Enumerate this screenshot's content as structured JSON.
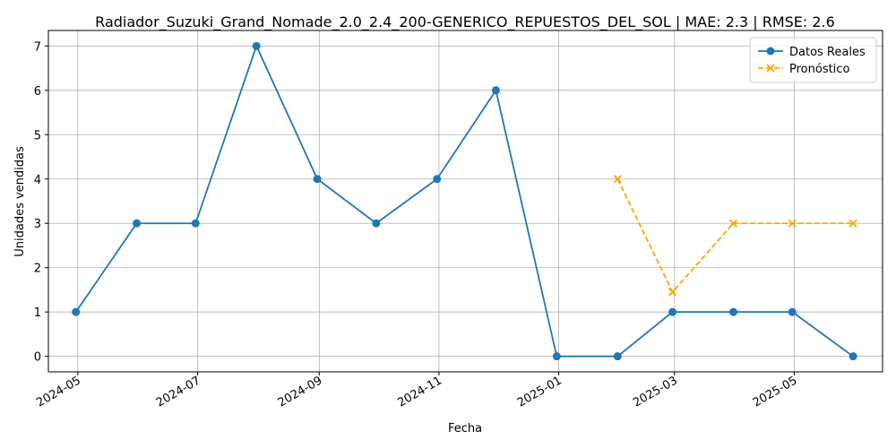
{
  "chart_data": {
    "type": "line",
    "title": "Radiador_Suzuki_Grand_Nomade_2.0_2.4_200-GENERICO_REPUESTOS_DEL_SOL | MAE: 2.3 | RMSE: 2.6",
    "xlabel": "Fecha",
    "ylabel": "Unidades vendidas",
    "x_tick_labels": [
      "2024-05",
      "2024-07",
      "2024-09",
      "2024-11",
      "2025-01",
      "2025-03",
      "2025-05"
    ],
    "y_tick_labels": [
      "0",
      "1",
      "2",
      "3",
      "4",
      "5",
      "6",
      "7"
    ],
    "xlim": [
      "2024-04-16",
      "2025-06-15"
    ],
    "ylim": [
      -0.35,
      7.35
    ],
    "grid": true,
    "legend_position": "top-right",
    "series": [
      {
        "name": "Datos Reales",
        "color": "#1f77b4",
        "line_style": "solid",
        "marker": "circle",
        "x": [
          "2024-04-30",
          "2024-05-31",
          "2024-06-30",
          "2024-07-31",
          "2024-08-31",
          "2024-09-30",
          "2024-10-31",
          "2024-11-30",
          "2024-12-31",
          "2025-01-31",
          "2025-02-28",
          "2025-03-31",
          "2025-04-30",
          "2025-05-31"
        ],
        "values": [
          1,
          3,
          3,
          7,
          4,
          3,
          4,
          6,
          0,
          0,
          1,
          1,
          1,
          0
        ]
      },
      {
        "name": "Pronóstico",
        "color": "#ffa500",
        "line_style": "dashed",
        "marker": "x",
        "x": [
          "2025-01-31",
          "2025-02-28",
          "2025-03-31",
          "2025-04-30",
          "2025-05-31"
        ],
        "values": [
          4,
          1.45,
          3,
          3,
          3
        ]
      }
    ]
  }
}
